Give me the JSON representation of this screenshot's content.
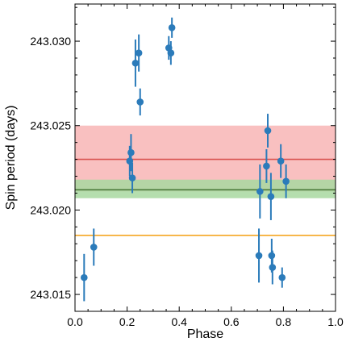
{
  "chart_data": {
    "type": "scatter",
    "xlabel": "Phase",
    "ylabel": "Spin period (days)",
    "xlim": [
      0.0,
      1.0
    ],
    "ylim": [
      243.014,
      243.0322
    ],
    "x_ticks": [
      0.0,
      0.2,
      0.4,
      0.6,
      0.8,
      1.0
    ],
    "x_tick_labels": [
      "0.0",
      "0.2",
      "0.4",
      "0.6",
      "0.8",
      "1.0"
    ],
    "y_ticks": [
      243.015,
      243.02,
      243.025,
      243.03
    ],
    "y_tick_labels": [
      "243.015",
      "243.020",
      "243.025",
      "243.030"
    ],
    "grid": false,
    "points": [
      {
        "x": 0.035,
        "y": 243.016,
        "err": 0.0014
      },
      {
        "x": 0.072,
        "y": 243.0178,
        "err": 0.0011
      },
      {
        "x": 0.21,
        "y": 243.0229,
        "err": 0.0009
      },
      {
        "x": 0.215,
        "y": 243.0234,
        "err": 0.0011
      },
      {
        "x": 0.22,
        "y": 243.0219,
        "err": 0.0009
      },
      {
        "x": 0.232,
        "y": 243.0287,
        "err": 0.0014
      },
      {
        "x": 0.245,
        "y": 243.0293,
        "err": 0.0011
      },
      {
        "x": 0.25,
        "y": 243.0264,
        "err": 0.0008
      },
      {
        "x": 0.36,
        "y": 243.0296,
        "err": 0.0007
      },
      {
        "x": 0.368,
        "y": 243.0293,
        "err": 0.0007
      },
      {
        "x": 0.372,
        "y": 243.0308,
        "err": 0.0006
      },
      {
        "x": 0.706,
        "y": 243.0173,
        "err": 0.0016
      },
      {
        "x": 0.71,
        "y": 243.0211,
        "err": 0.0016
      },
      {
        "x": 0.735,
        "y": 243.0226,
        "err": 0.001
      },
      {
        "x": 0.74,
        "y": 243.0247,
        "err": 0.001
      },
      {
        "x": 0.752,
        "y": 243.0208,
        "err": 0.0014
      },
      {
        "x": 0.755,
        "y": 243.0173,
        "err": 0.001
      },
      {
        "x": 0.758,
        "y": 243.0166,
        "err": 0.001
      },
      {
        "x": 0.79,
        "y": 243.0229,
        "err": 0.001
      },
      {
        "x": 0.795,
        "y": 243.016,
        "err": 0.0006
      },
      {
        "x": 0.81,
        "y": 243.0217,
        "err": 0.001
      }
    ],
    "bands": [
      {
        "y_low": 243.0211,
        "y_high": 243.025,
        "color": "#f8b5b5"
      },
      {
        "y_low": 243.0207,
        "y_high": 243.0218,
        "color": "#a8d8a0"
      }
    ],
    "hlines": [
      {
        "y": 243.023,
        "color": "#d9534f"
      },
      {
        "y": 243.0212,
        "color": "#4a7a3a"
      },
      {
        "y": 243.0185,
        "color": "#f5a623"
      }
    ],
    "marker_color": "#2b7bba"
  }
}
